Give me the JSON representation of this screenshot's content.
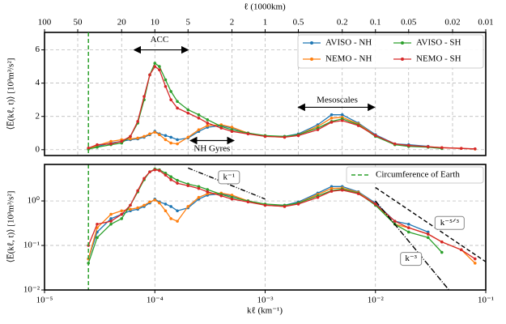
{
  "chart_data": [
    {
      "type": "line",
      "xscale": "log",
      "yscale": "linear",
      "grid": true,
      "ylabel": "⟨E̅(kℓ, t)⟩ [10³m³/s²]",
      "x2label": "ℓ (1000km)",
      "xlim": [
        1e-05,
        0.1
      ],
      "ylim": [
        -0.35,
        7.05
      ],
      "yticks": [
        0,
        2,
        4,
        6
      ],
      "x2ticks": [
        100,
        50,
        20,
        10,
        5,
        2,
        1,
        0.5,
        0.2,
        0.1,
        0.05,
        0.02,
        0.01
      ],
      "legend": "upper right",
      "annotations": [
        "ACC",
        "NH Gyres",
        "Mesoscales"
      ],
      "x": [
        2.5e-05,
        3e-05,
        4e-05,
        5e-05,
        6e-05,
        7e-05,
        8e-05,
        9e-05,
        0.0001,
        0.00011,
        0.000125,
        0.00014,
        0.00016,
        0.0002,
        0.00025,
        0.0003,
        0.0004,
        0.0005,
        0.0007,
        0.001,
        0.0015,
        0.002,
        0.003,
        0.004,
        0.005,
        0.007,
        0.01,
        0.015,
        0.02,
        0.03,
        0.04,
        0.06,
        0.08
      ],
      "series": [
        {
          "name": "AVISO - NH",
          "color": "#1f77b4",
          "values": [
            0.05,
            0.2,
            0.4,
            0.5,
            0.6,
            0.65,
            0.75,
            0.9,
            1.1,
            0.95,
            0.85,
            0.75,
            0.6,
            0.7,
            1.1,
            1.35,
            1.45,
            1.3,
            1.0,
            0.8,
            0.8,
            0.95,
            1.5,
            2.1,
            2.1,
            1.6,
            0.9,
            0.35,
            0.3,
            0.2,
            null,
            null,
            null
          ]
        },
        {
          "name": "NEMO - NH",
          "color": "#ff7f0e",
          "values": [
            0.05,
            0.25,
            0.5,
            0.6,
            0.65,
            0.7,
            0.8,
            0.95,
            1.05,
            0.9,
            0.6,
            0.4,
            0.35,
            0.75,
            1.2,
            1.45,
            1.5,
            1.35,
            1.0,
            0.8,
            0.75,
            0.9,
            1.4,
            1.9,
            1.95,
            1.55,
            0.85,
            0.3,
            0.25,
            0.18,
            0.12,
            0.08,
            0.04
          ]
        },
        {
          "name": "AVISO - SH",
          "color": "#2ca02c",
          "values": [
            0.04,
            0.15,
            0.3,
            0.4,
            0.8,
            1.6,
            3.0,
            4.5,
            5.2,
            5.0,
            4.2,
            3.5,
            2.9,
            2.4,
            2.1,
            1.8,
            1.4,
            1.2,
            1.0,
            0.85,
            0.8,
            0.9,
            1.3,
            1.7,
            1.85,
            1.5,
            0.8,
            0.3,
            0.2,
            0.15,
            0.07,
            null,
            null
          ]
        },
        {
          "name": "NEMO - SH",
          "color": "#d62728",
          "values": [
            0.1,
            0.3,
            0.35,
            0.5,
            0.8,
            1.7,
            3.2,
            4.5,
            5.0,
            4.8,
            3.8,
            3.0,
            2.5,
            2.2,
            1.9,
            1.6,
            1.3,
            1.1,
            0.95,
            0.8,
            0.75,
            0.85,
            1.2,
            1.65,
            1.75,
            1.45,
            0.85,
            0.35,
            0.25,
            0.18,
            0.12,
            0.08,
            0.05
          ]
        }
      ]
    },
    {
      "type": "line",
      "xscale": "log",
      "yscale": "log",
      "grid": true,
      "ylabel": "⟨E̅(kℓ, t)⟩ [10³m³/s²]",
      "xlabel": "kℓ (km⁻¹)",
      "xlim": [
        1e-05,
        0.1
      ],
      "ylim": [
        0.01,
        6.6
      ],
      "xticks": [
        {
          "value": 1e-05,
          "label": "10⁻⁵"
        },
        {
          "value": 0.0001,
          "label": "10⁻⁴"
        },
        {
          "value": 0.001,
          "label": "10⁻³"
        },
        {
          "value": 0.01,
          "label": "10⁻²"
        },
        {
          "value": 0.1,
          "label": "10⁻¹"
        }
      ],
      "yticks": [
        {
          "value": 0.01,
          "label": "10⁻²"
        },
        {
          "value": 0.1,
          "label": "10⁻¹"
        },
        {
          "value": 1,
          "label": "10⁰"
        }
      ],
      "legend": "upper right",
      "vline": {
        "name": "Circumference of Earth",
        "x": 2.5e-05,
        "color": "#2ca02c"
      },
      "annotations": [
        "k⁻¹",
        "k⁻⁵ᐟ³",
        "k⁻³"
      ],
      "x": [
        2.5e-05,
        3e-05,
        4e-05,
        5e-05,
        6e-05,
        7e-05,
        8e-05,
        9e-05,
        0.0001,
        0.00011,
        0.000125,
        0.00014,
        0.00016,
        0.0002,
        0.00025,
        0.0003,
        0.0004,
        0.0005,
        0.0007,
        0.001,
        0.0015,
        0.002,
        0.003,
        0.004,
        0.005,
        0.007,
        0.01,
        0.015,
        0.02,
        0.03,
        0.04,
        0.06,
        0.08
      ],
      "series": [
        {
          "color": "#1f77b4",
          "values": [
            0.05,
            0.2,
            0.4,
            0.5,
            0.6,
            0.65,
            0.75,
            0.9,
            1.1,
            0.95,
            0.85,
            0.75,
            0.6,
            0.7,
            1.1,
            1.35,
            1.45,
            1.3,
            1.0,
            0.8,
            0.8,
            0.95,
            1.5,
            2.1,
            2.1,
            1.6,
            0.9,
            0.35,
            0.3,
            0.2,
            null,
            null,
            null
          ]
        },
        {
          "color": "#ff7f0e",
          "values": [
            0.05,
            0.25,
            0.5,
            0.6,
            0.65,
            0.7,
            0.8,
            0.95,
            1.05,
            0.9,
            0.6,
            0.4,
            0.35,
            0.75,
            1.2,
            1.45,
            1.5,
            1.35,
            1.0,
            0.8,
            0.75,
            0.9,
            1.4,
            1.9,
            1.95,
            1.55,
            0.85,
            0.3,
            0.25,
            0.18,
            0.12,
            0.08,
            0.04
          ]
        },
        {
          "color": "#2ca02c",
          "values": [
            0.04,
            0.15,
            0.3,
            0.4,
            0.8,
            1.6,
            3.0,
            4.5,
            5.2,
            5.0,
            4.2,
            3.5,
            2.9,
            2.4,
            2.1,
            1.8,
            1.4,
            1.2,
            1.0,
            0.85,
            0.8,
            0.9,
            1.3,
            1.7,
            1.85,
            1.5,
            0.8,
            0.3,
            0.2,
            0.15,
            0.07,
            null,
            null
          ]
        },
        {
          "color": "#d62728",
          "values": [
            0.1,
            0.3,
            0.35,
            0.5,
            0.8,
            1.7,
            3.2,
            4.5,
            5.0,
            4.8,
            3.8,
            3.0,
            2.5,
            2.2,
            1.9,
            1.6,
            1.3,
            1.1,
            0.95,
            0.8,
            0.75,
            0.85,
            1.2,
            1.65,
            1.75,
            1.45,
            0.85,
            0.35,
            0.25,
            0.18,
            0.12,
            0.08,
            0.05
          ]
        }
      ]
    }
  ]
}
